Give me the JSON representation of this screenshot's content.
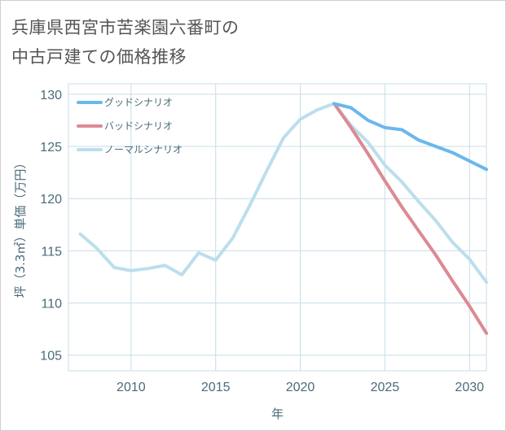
{
  "title_line1": "兵庫県西宮市苦楽園六番町の",
  "title_line2": "中古戸建ての価格推移",
  "colors": {
    "good": "#6ab8ec",
    "bad": "#dc8a93",
    "normal": "#bcdeed",
    "grid": "#c8dde8",
    "axis": "#4a6b7a"
  },
  "chart_data": {
    "type": "line",
    "title": "兵庫県西宮市苦楽園六番町の中古戸建ての価格推移",
    "xlabel": "年",
    "ylabel": "坪（3.3㎡）単価（万円）",
    "xlim": [
      2006.3,
      2031
    ],
    "ylim": [
      103.5,
      131
    ],
    "xticks": [
      2010,
      2015,
      2020,
      2025,
      2030
    ],
    "yticks": [
      105,
      110,
      115,
      120,
      125,
      130
    ],
    "grid": true,
    "legend_position": "top-left",
    "series": [
      {
        "name": "グッドシナリオ",
        "key": "good",
        "x": [
          2022,
          2023,
          2024,
          2025,
          2026,
          2027,
          2028,
          2029,
          2030,
          2031
        ],
        "y": [
          129.1,
          128.7,
          127.5,
          126.8,
          126.6,
          125.6,
          125.0,
          124.4,
          123.6,
          122.8
        ]
      },
      {
        "name": "バッドシナリオ",
        "key": "bad",
        "x": [
          2022,
          2023,
          2024,
          2025,
          2026,
          2027,
          2028,
          2029,
          2030,
          2031
        ],
        "y": [
          129.1,
          126.8,
          124.3,
          121.7,
          119.2,
          116.9,
          114.6,
          112.1,
          109.7,
          107.1
        ]
      },
      {
        "name": "ノーマルシナリオ",
        "key": "normal",
        "x": [
          2007,
          2008,
          2009,
          2010,
          2011,
          2012,
          2013,
          2014,
          2015,
          2016,
          2017,
          2018,
          2019,
          2020,
          2021,
          2022,
          2023,
          2024,
          2025,
          2026,
          2027,
          2028,
          2029,
          2030,
          2031
        ],
        "y": [
          116.6,
          115.2,
          113.4,
          113.1,
          113.3,
          113.6,
          112.7,
          114.8,
          114.1,
          116.2,
          119.3,
          122.6,
          125.8,
          127.6,
          128.5,
          129.1,
          127.0,
          125.4,
          123.2,
          121.6,
          119.7,
          117.9,
          115.8,
          114.2,
          112.0
        ]
      }
    ]
  }
}
